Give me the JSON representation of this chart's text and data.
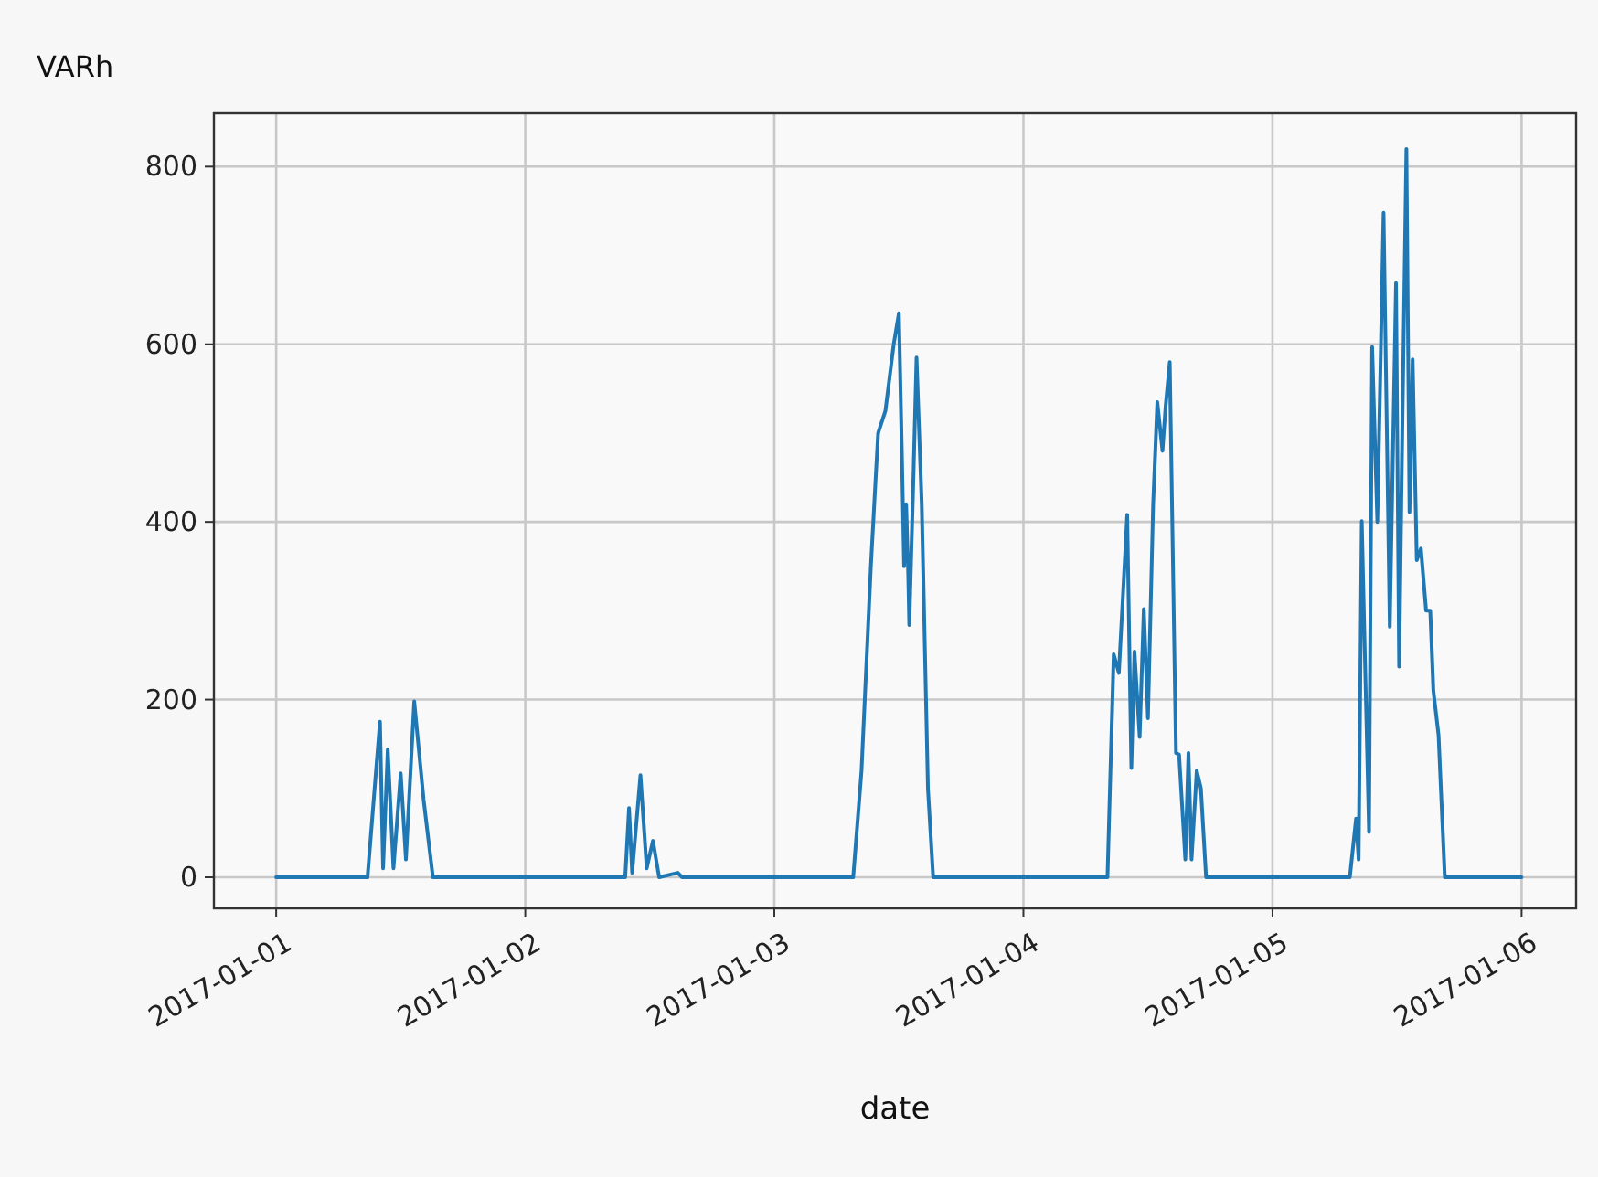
{
  "chart_data": {
    "type": "line",
    "xlabel": "date",
    "ylabel": "VARh",
    "xlim": [
      "2016-12-31T18:00",
      "2017-01-06T05:15"
    ],
    "ylim": [
      -35,
      860
    ],
    "xticks": [
      "2017-01-01",
      "2017-01-02",
      "2017-01-03",
      "2017-01-04",
      "2017-01-05",
      "2017-01-06"
    ],
    "yticks": [
      0,
      200,
      400,
      600,
      800
    ],
    "grid": true,
    "series": [
      {
        "color": "#1f77b4",
        "x": [
          "2017-01-01T00:00",
          "2017-01-01T08:48",
          "2017-01-01T10:00",
          "2017-01-01T10:18",
          "2017-01-01T10:45",
          "2017-01-01T11:18",
          "2017-01-01T12:00",
          "2017-01-01T12:30",
          "2017-01-01T13:18",
          "2017-01-01T14:12",
          "2017-01-01T15:06",
          "2017-01-02T09:38",
          "2017-01-02T10:00",
          "2017-01-02T10:18",
          "2017-01-02T11:06",
          "2017-01-02T11:42",
          "2017-01-02T12:18",
          "2017-01-02T12:54",
          "2017-01-02T14:42",
          "2017-01-02T15:06",
          "2017-01-03T07:36",
          "2017-01-03T08:24",
          "2017-01-03T09:18",
          "2017-01-03T10:00",
          "2017-01-03T10:42",
          "2017-01-03T11:30",
          "2017-01-03T12:00",
          "2017-01-03T12:18",
          "2017-01-03T12:30",
          "2017-01-03T12:42",
          "2017-01-03T12:54",
          "2017-01-03T13:00",
          "2017-01-03T13:24",
          "2017-01-03T13:42",
          "2017-01-03T14:12",
          "2017-01-03T14:48",
          "2017-01-03T15:18",
          "2017-01-04T08:06",
          "2017-01-04T08:42",
          "2017-01-04T09:12",
          "2017-01-04T10:00",
          "2017-01-04T10:24",
          "2017-01-04T10:42",
          "2017-01-04T11:12",
          "2017-01-04T11:36",
          "2017-01-04T12:00",
          "2017-01-04T12:30",
          "2017-01-04T12:54",
          "2017-01-04T13:24",
          "2017-01-04T13:42",
          "2017-01-04T14:06",
          "2017-01-04T14:42",
          "2017-01-04T15:00",
          "2017-01-04T15:36",
          "2017-01-04T15:54",
          "2017-01-04T16:12",
          "2017-01-04T16:42",
          "2017-01-04T17:06",
          "2017-01-04T17:36",
          "2017-01-05T07:27",
          "2017-01-05T08:03",
          "2017-01-05T08:18",
          "2017-01-05T08:36",
          "2017-01-05T09:18",
          "2017-01-05T09:36",
          "2017-01-05T10:06",
          "2017-01-05T10:42",
          "2017-01-05T11:18",
          "2017-01-05T11:54",
          "2017-01-05T12:12",
          "2017-01-05T12:30",
          "2017-01-05T12:54",
          "2017-01-05T13:12",
          "2017-01-05T13:30",
          "2017-01-05T13:54",
          "2017-01-05T14:18",
          "2017-01-05T14:48",
          "2017-01-05T15:12",
          "2017-01-05T15:30",
          "2017-01-05T16:00",
          "2017-01-05T16:36",
          "2017-01-06T00:00"
        ],
        "values": [
          0,
          0,
          175,
          10,
          144,
          10,
          117,
          20,
          198,
          88,
          0,
          0,
          78,
          5,
          115,
          10,
          41,
          0,
          5,
          0,
          0,
          120,
          350,
          500,
          525,
          600,
          635,
          470,
          350,
          420,
          340,
          284,
          450,
          585,
          420,
          100,
          0,
          0,
          251,
          230,
          408,
          123,
          254,
          158,
          302,
          179,
          420,
          535,
          480,
          530,
          580,
          140,
          138,
          20,
          140,
          20,
          120,
          100,
          0,
          0,
          66,
          20,
          401,
          51,
          597,
          400,
          748,
          282,
          669,
          237,
          500,
          820,
          411,
          583,
          357,
          370,
          300,
          300,
          210,
          160,
          0,
          0
        ]
      }
    ]
  }
}
